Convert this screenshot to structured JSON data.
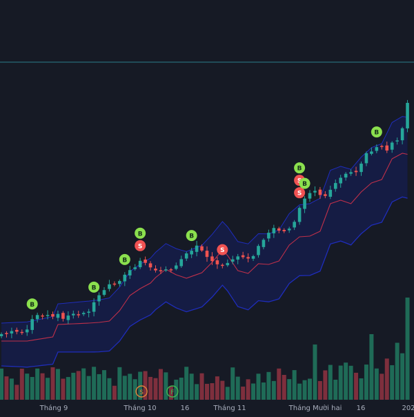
{
  "chart_data": {
    "type": "candlestick",
    "indicators": [
      "moving-average",
      "bollinger-bands",
      "volume",
      "buy-sell-signals"
    ],
    "colors": {
      "background": "#161a25",
      "up": "#26a69a",
      "down": "#ef5350",
      "volume_up": "#1f6b57",
      "volume_down": "#7e2f3d",
      "moving_average": "#c0304a",
      "band_line": "#1f2dbb",
      "band_fill": "#151d4a",
      "buy_marker": "#8be04e",
      "sell_marker": "#f05252",
      "reference_line": "#2a7d8a"
    },
    "x_ticks": [
      "Tháng 9",
      "Tháng 10",
      "16",
      "Tháng 11",
      "Tháng Mười hai",
      "16",
      "202"
    ],
    "signal_labels": {
      "buy": "B",
      "sell": "S"
    },
    "signals": [
      {
        "type": "B",
        "bar": 6
      },
      {
        "type": "B",
        "bar": 18
      },
      {
        "type": "B",
        "bar": 24
      },
      {
        "type": "S",
        "bar": 27
      },
      {
        "type": "B",
        "bar": 27
      },
      {
        "type": "B",
        "bar": 37
      },
      {
        "type": "S",
        "bar": 43
      },
      {
        "type": "S",
        "bar": 58
      },
      {
        "type": "S",
        "bar": 58
      },
      {
        "type": "B",
        "bar": 58
      },
      {
        "type": "B",
        "bar": 59
      },
      {
        "type": "B",
        "bar": 73
      }
    ],
    "volume_badges": [
      {
        "label": "S",
        "bar": 27
      },
      {
        "label": "F",
        "bar": 33
      }
    ]
  }
}
